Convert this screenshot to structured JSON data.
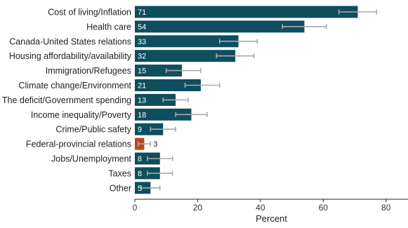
{
  "chart_data": {
    "type": "bar",
    "orientation": "horizontal",
    "categories": [
      "Cost of living/Inflation",
      "Health care",
      "Canada-United States relations",
      "Housing affordability/availability",
      "Immigration/Refugees",
      "Climate change/Environment",
      "The deficit/Government spending",
      "Income inequality/Poverty",
      "Crime/Public safety",
      "Federal-provincial relations",
      "Jobs/Unemployment",
      "Taxes",
      "Other"
    ],
    "values": [
      71,
      54,
      33,
      32,
      15,
      21,
      13,
      18,
      9,
      3,
      8,
      8,
      5
    ],
    "error_low": [
      65,
      47,
      27,
      26,
      10,
      16,
      9,
      13,
      5,
      1,
      4,
      4,
      2
    ],
    "error_high": [
      77,
      61,
      39,
      38,
      21,
      27,
      17,
      23,
      13,
      5,
      12,
      12,
      8
    ],
    "highlight_category": "Federal-provincial relations",
    "xlabel": "Percent",
    "ylabel": "",
    "title": "",
    "xlim": [
      0,
      87
    ],
    "xticks": [
      0,
      20,
      40,
      60,
      80
    ],
    "grid": false,
    "colors": {
      "bar": "#0e4e5e",
      "highlight": "#b5491c",
      "error_bar": "#aaaaaa",
      "axis": "#222222"
    }
  }
}
